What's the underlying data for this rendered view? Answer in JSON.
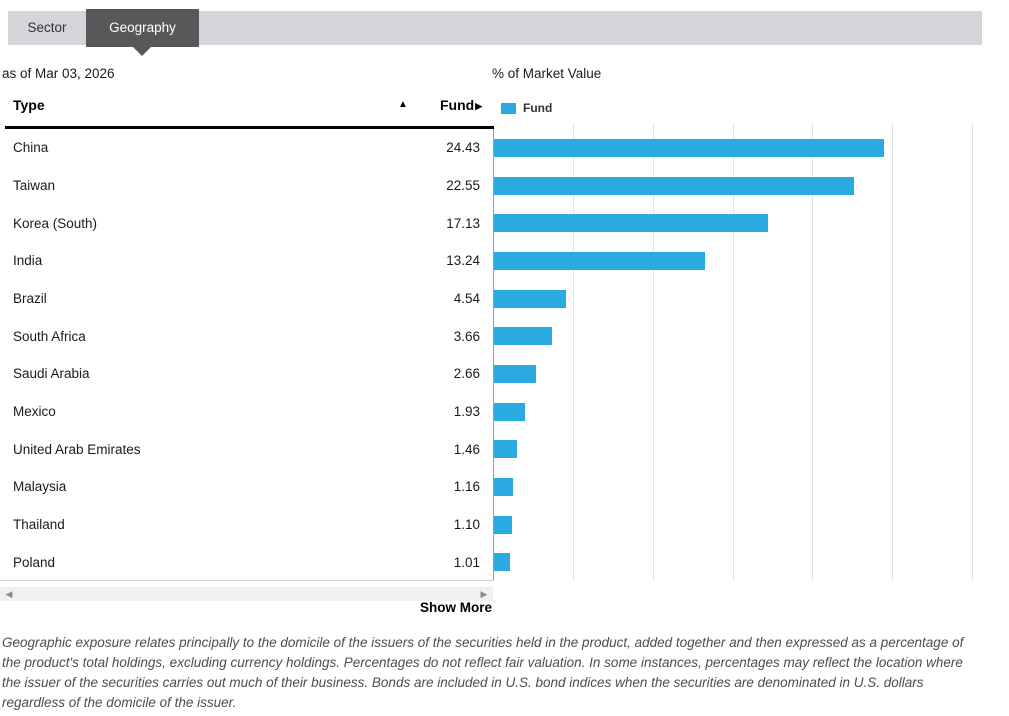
{
  "tabs": {
    "sector": "Sector",
    "geography": "Geography"
  },
  "as_of": "as of Mar 03, 2026",
  "chart_title": "% of Market Value",
  "table": {
    "type_header": "Type",
    "fund_header": "Fund",
    "sort_asc_icon": "▲",
    "expand_icon": "▶",
    "rows": [
      {
        "type": "China",
        "fund": "24.43"
      },
      {
        "type": "Taiwan",
        "fund": "22.55"
      },
      {
        "type": "Korea (South)",
        "fund": "17.13"
      },
      {
        "type": "India",
        "fund": "13.24"
      },
      {
        "type": "Brazil",
        "fund": "4.54"
      },
      {
        "type": "South Africa",
        "fund": "3.66"
      },
      {
        "type": "Saudi Arabia",
        "fund": "2.66"
      },
      {
        "type": "Mexico",
        "fund": "1.93"
      },
      {
        "type": "United Arab Emirates",
        "fund": "1.46"
      },
      {
        "type": "Malaysia",
        "fund": "1.16"
      },
      {
        "type": "Thailand",
        "fund": "1.10"
      },
      {
        "type": "Poland",
        "fund": "1.01"
      }
    ]
  },
  "legend": {
    "label": "Fund",
    "color": "#29abe2"
  },
  "chart_data": {
    "type": "bar",
    "orientation": "horizontal",
    "title": "% of Market Value",
    "series_name": "Fund",
    "categories": [
      "China",
      "Taiwan",
      "Korea (South)",
      "India",
      "Brazil",
      "South Africa",
      "Saudi Arabia",
      "Mexico",
      "United Arab Emirates",
      "Malaysia",
      "Thailand",
      "Poland"
    ],
    "values": [
      24.43,
      22.55,
      17.13,
      13.24,
      4.54,
      3.66,
      2.66,
      1.93,
      1.46,
      1.16,
      1.1,
      1.01
    ],
    "xlim": [
      0,
      30
    ],
    "gridline_interval": 5,
    "grid": true,
    "legend_position": "top",
    "bar_color": "#29abe2"
  },
  "scrollbar": {
    "left_arrow": "◀",
    "right_arrow": "▶"
  },
  "show_more": "Show More",
  "footnote": "Geographic exposure relates principally to the domicile of the issuers of the securities held in the product, added together and then expressed as a percentage of the product's total holdings, excluding currency holdings. Percentages do not reflect fair valuation. In some instances, percentages may reflect the location where the issuer of the securities carries out much of their business. Bonds are included in U.S. bond indices when the securities are denominated in U.S. dollars regardless of the domicile of the issuer."
}
